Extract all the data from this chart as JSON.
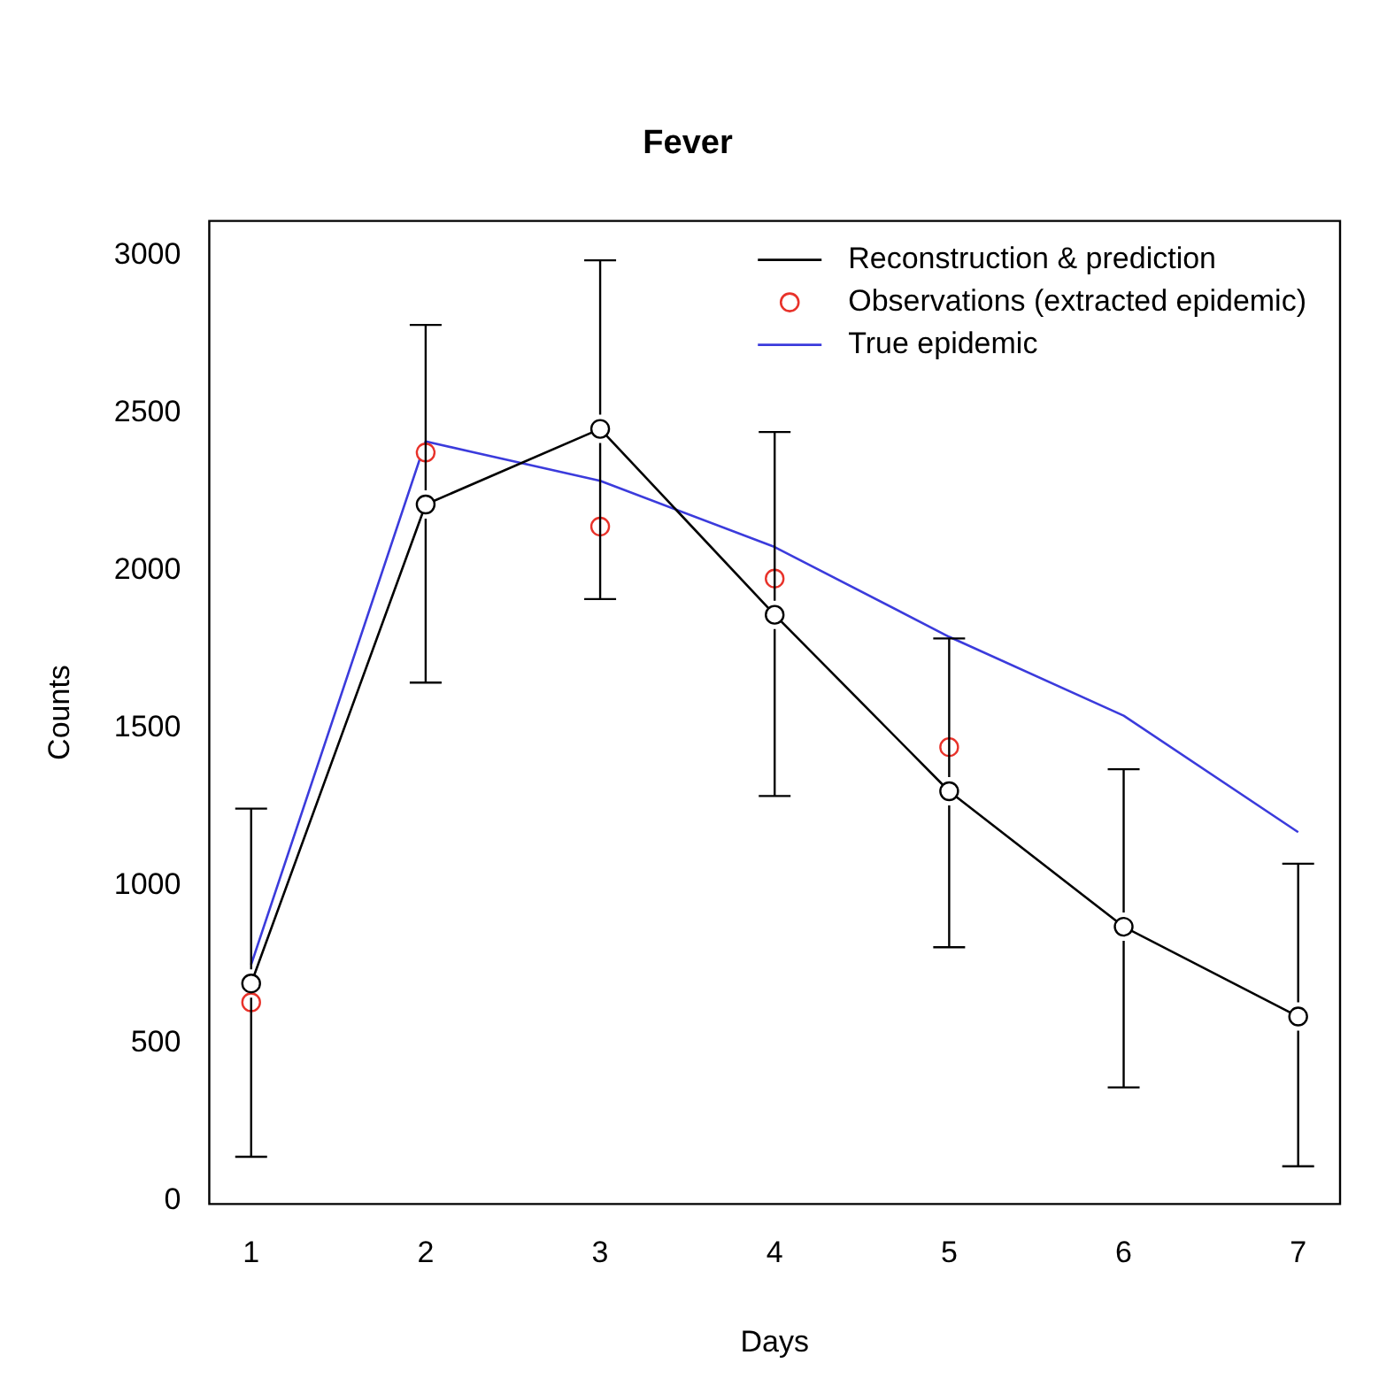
{
  "chart_data": {
    "type": "line",
    "title": "Fever",
    "xlabel": "Days",
    "ylabel": "Counts",
    "x": [
      1,
      2,
      3,
      4,
      5,
      6,
      7
    ],
    "xlim": [
      0.76,
      7.24
    ],
    "xticks": [
      1,
      2,
      3,
      4,
      5,
      6,
      7
    ],
    "ylim": [
      -10,
      3110
    ],
    "yticks": [
      0,
      500,
      1000,
      1500,
      2000,
      2500,
      3000
    ],
    "series": [
      {
        "name": "Reconstruction & prediction",
        "color": "#000000",
        "marker": "circle",
        "values": [
          690,
          2210,
          2450,
          1860,
          1300,
          870,
          585
        ],
        "errors": [
          [
            140,
            1245
          ],
          [
            1645,
            2780
          ],
          [
            1910,
            2985
          ],
          [
            1285,
            2440
          ],
          [
            805,
            1785
          ],
          [
            360,
            1370
          ],
          [
            110,
            1070
          ]
        ]
      },
      {
        "name": "Observations (extracted epidemic)",
        "type": "scatter",
        "color": "#e8322a",
        "marker": "circle",
        "values": [
          630,
          2375,
          2140,
          1975,
          1440,
          null,
          null
        ]
      },
      {
        "name": "True epidemic",
        "color": "#3b3bdc",
        "marker": "none",
        "values": [
          750,
          2410,
          2285,
          2075,
          1790,
          1540,
          1170
        ]
      }
    ],
    "grid": false,
    "legend": "top right"
  }
}
